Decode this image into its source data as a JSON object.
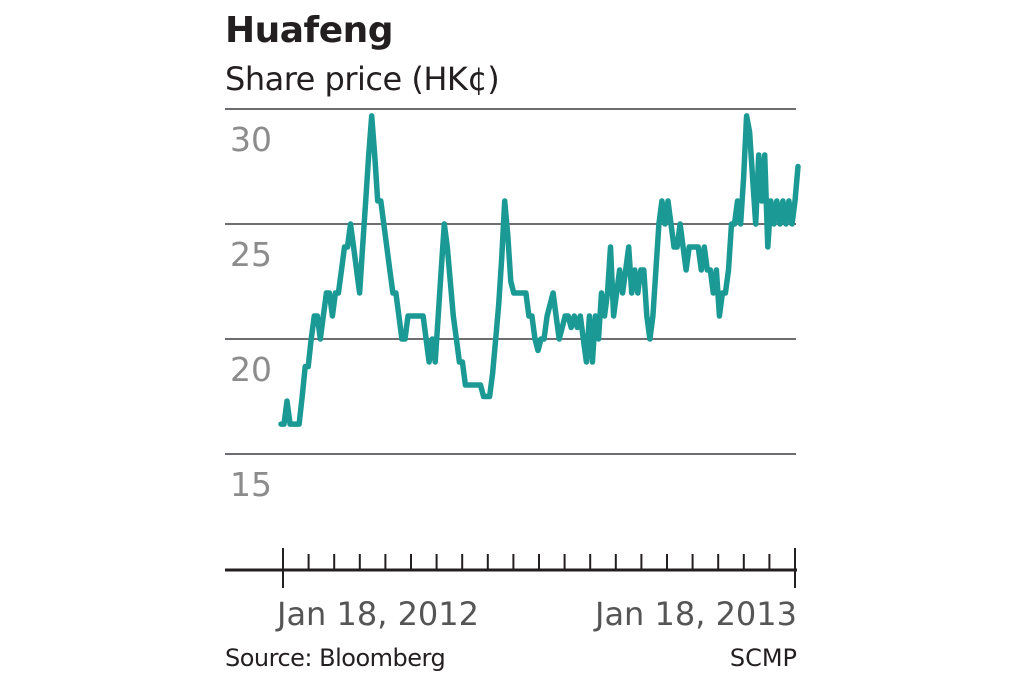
{
  "chart_data": {
    "type": "line",
    "title": "Huafeng",
    "subtitle": "Share price (HK¢)",
    "ylim": [
      15,
      30
    ],
    "yticks": [
      30,
      25,
      20,
      15
    ],
    "x_tick_labels": [
      "Jan 18, 2012",
      "Jan 18, 2013"
    ],
    "grid": true,
    "line_color": "#1b9a95",
    "series": [
      {
        "values": [
          16.3,
          16.3,
          17.3,
          16.3,
          16.3,
          16.3,
          16.3,
          17.5,
          18.8,
          18.8,
          20.0,
          21.0,
          21.0,
          20.0,
          21.0,
          22.0,
          22.0,
          21.0,
          22.0,
          22.0,
          23.0,
          24.0,
          24.0,
          25.0,
          24.0,
          23.0,
          22.0,
          24.0,
          26.0,
          28.0,
          29.7,
          28.0,
          26.0,
          26.0,
          25.0,
          24.0,
          23.0,
          22.0,
          22.0,
          21.0,
          20.0,
          20.0,
          21.0,
          21.0,
          21.0,
          21.0,
          21.0,
          21.0,
          20.0,
          19.0,
          20.0,
          19.0,
          21.0,
          23.0,
          25.0,
          24.0,
          22.5,
          21.0,
          20.0,
          19.0,
          19.0,
          18.0,
          18.0,
          18.0,
          18.0,
          18.0,
          18.0,
          17.5,
          17.5,
          17.5,
          18.5,
          20.0,
          21.5,
          23.5,
          26.0,
          24.5,
          22.5,
          22.0,
          22.0,
          22.0,
          22.0,
          22.0,
          21.0,
          21.0,
          20.0,
          19.5,
          20.0,
          20.0,
          21.0,
          21.5,
          22.0,
          21.0,
          20.0,
          20.5,
          21.0,
          21.0,
          20.5,
          21.0,
          20.5,
          21.0,
          20.0,
          19.0,
          21.0,
          19.0,
          21.0,
          20.0,
          22.0,
          21.0,
          22.0,
          24.0,
          21.0,
          22.0,
          23.0,
          22.0,
          23.0,
          24.0,
          22.0,
          23.0,
          22.0,
          23.0,
          23.0,
          21.0,
          20.0,
          21.0,
          23.0,
          25.0,
          26.0,
          25.0,
          26.0,
          25.0,
          24.0,
          24.0,
          25.0,
          24.0,
          23.0,
          24.0,
          24.0,
          24.0,
          24.0,
          23.0,
          24.0,
          23.0,
          23.0,
          22.0,
          23.0,
          21.0,
          22.0,
          22.0,
          23.0,
          25.0,
          25.0,
          26.0,
          25.0,
          27.0,
          29.7,
          29.0,
          27.0,
          25.0,
          28.0,
          26.0,
          28.0,
          24.0,
          26.0,
          25.0,
          26.0,
          25.0,
          26.0,
          25.0,
          26.0,
          25.0,
          26.0,
          27.5
        ]
      }
    ]
  },
  "footer": {
    "source": "Source: Bloomberg",
    "credit": "SCMP"
  }
}
